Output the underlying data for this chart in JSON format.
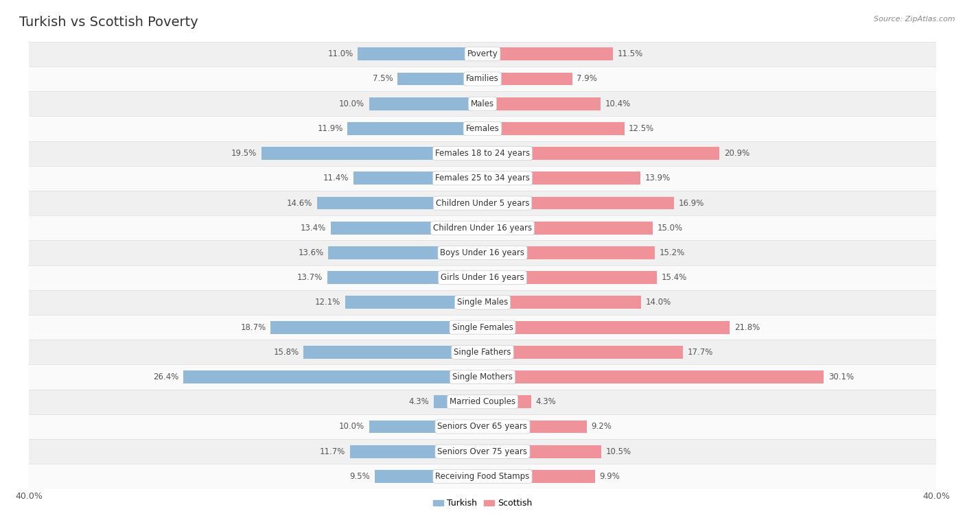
{
  "title": "Turkish vs Scottish Poverty",
  "source": "Source: ZipAtlas.com",
  "categories": [
    "Poverty",
    "Families",
    "Males",
    "Females",
    "Females 18 to 24 years",
    "Females 25 to 34 years",
    "Children Under 5 years",
    "Children Under 16 years",
    "Boys Under 16 years",
    "Girls Under 16 years",
    "Single Males",
    "Single Females",
    "Single Fathers",
    "Single Mothers",
    "Married Couples",
    "Seniors Over 65 years",
    "Seniors Over 75 years",
    "Receiving Food Stamps"
  ],
  "turkish": [
    11.0,
    7.5,
    10.0,
    11.9,
    19.5,
    11.4,
    14.6,
    13.4,
    13.6,
    13.7,
    12.1,
    18.7,
    15.8,
    26.4,
    4.3,
    10.0,
    11.7,
    9.5
  ],
  "scottish": [
    11.5,
    7.9,
    10.4,
    12.5,
    20.9,
    13.9,
    16.9,
    15.0,
    15.2,
    15.4,
    14.0,
    21.8,
    17.7,
    30.1,
    4.3,
    9.2,
    10.5,
    9.9
  ],
  "turkish_color": "#92b8d8",
  "scottish_color": "#f0929a",
  "turkish_label": "Turkish",
  "scottish_label": "Scottish",
  "background_color": "#ffffff",
  "row_color_light": "#f0f0f0",
  "row_color_white": "#fafafa",
  "axis_max": 40.0,
  "bar_height": 0.52,
  "title_fontsize": 14,
  "label_fontsize": 8.5,
  "value_fontsize": 8.5
}
